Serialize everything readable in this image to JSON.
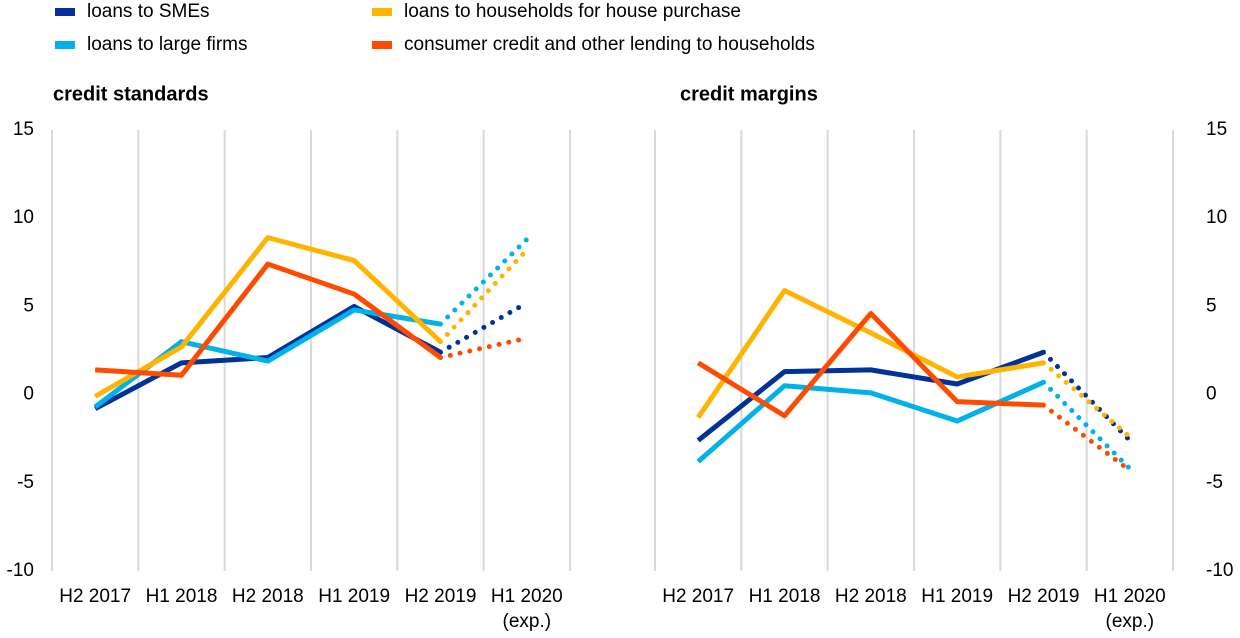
{
  "chart_data": [
    {
      "type": "line",
      "title": "credit standards",
      "yaxis_side": "left",
      "grid": "vertical",
      "last_segment_style": "dotted",
      "categories": [
        "H2 2017",
        "H1 2018",
        "H2 2018",
        "H1 2019",
        "H2 2019",
        "H1 2020\n(exp.)"
      ],
      "ylim": [
        -10,
        15
      ],
      "yticks": [
        -10,
        -5,
        0,
        5,
        10,
        15
      ],
      "series": [
        {
          "name": "loans to SMEs",
          "color": "#003299",
          "values": [
            -0.8,
            1.8,
            2.1,
            5.0,
            2.4,
            5.2
          ]
        },
        {
          "name": "loans to large firms",
          "color": "#00b1ea",
          "values": [
            -0.7,
            3.0,
            1.9,
            4.8,
            4.0,
            8.8
          ]
        },
        {
          "name": "loans to households for house purchase",
          "color": "#ffb400",
          "values": [
            -0.1,
            2.7,
            8.9,
            7.6,
            3.0,
            8.2
          ]
        },
        {
          "name": "consumer credit and other lending to households",
          "color": "#ff4b00",
          "values": [
            1.4,
            1.1,
            7.4,
            5.7,
            2.1,
            3.2
          ]
        }
      ]
    },
    {
      "type": "line",
      "title": "credit margins",
      "yaxis_side": "right",
      "grid": "vertical",
      "last_segment_style": "dotted",
      "categories": [
        "H2 2017",
        "H1 2018",
        "H2 2018",
        "H1 2019",
        "H2 2019",
        "H1 2020\n(exp.)"
      ],
      "ylim": [
        -10,
        15
      ],
      "yticks": [
        -10,
        -5,
        0,
        5,
        10,
        15
      ],
      "series": [
        {
          "color": "#003299",
          "values": [
            -2.6,
            1.3,
            1.4,
            0.6,
            2.4,
            -2.6
          ]
        },
        {
          "color": "#00b1ea",
          "values": [
            -3.8,
            0.5,
            0.1,
            -1.5,
            0.7,
            -4.2
          ]
        },
        {
          "color": "#ffb400",
          "values": [
            -1.3,
            5.9,
            3.5,
            1.0,
            1.8,
            -2.4
          ]
        },
        {
          "color": "#ff4b00",
          "values": [
            1.8,
            -1.2,
            4.6,
            -0.4,
            -0.6,
            -4.3
          ]
        }
      ]
    }
  ]
}
